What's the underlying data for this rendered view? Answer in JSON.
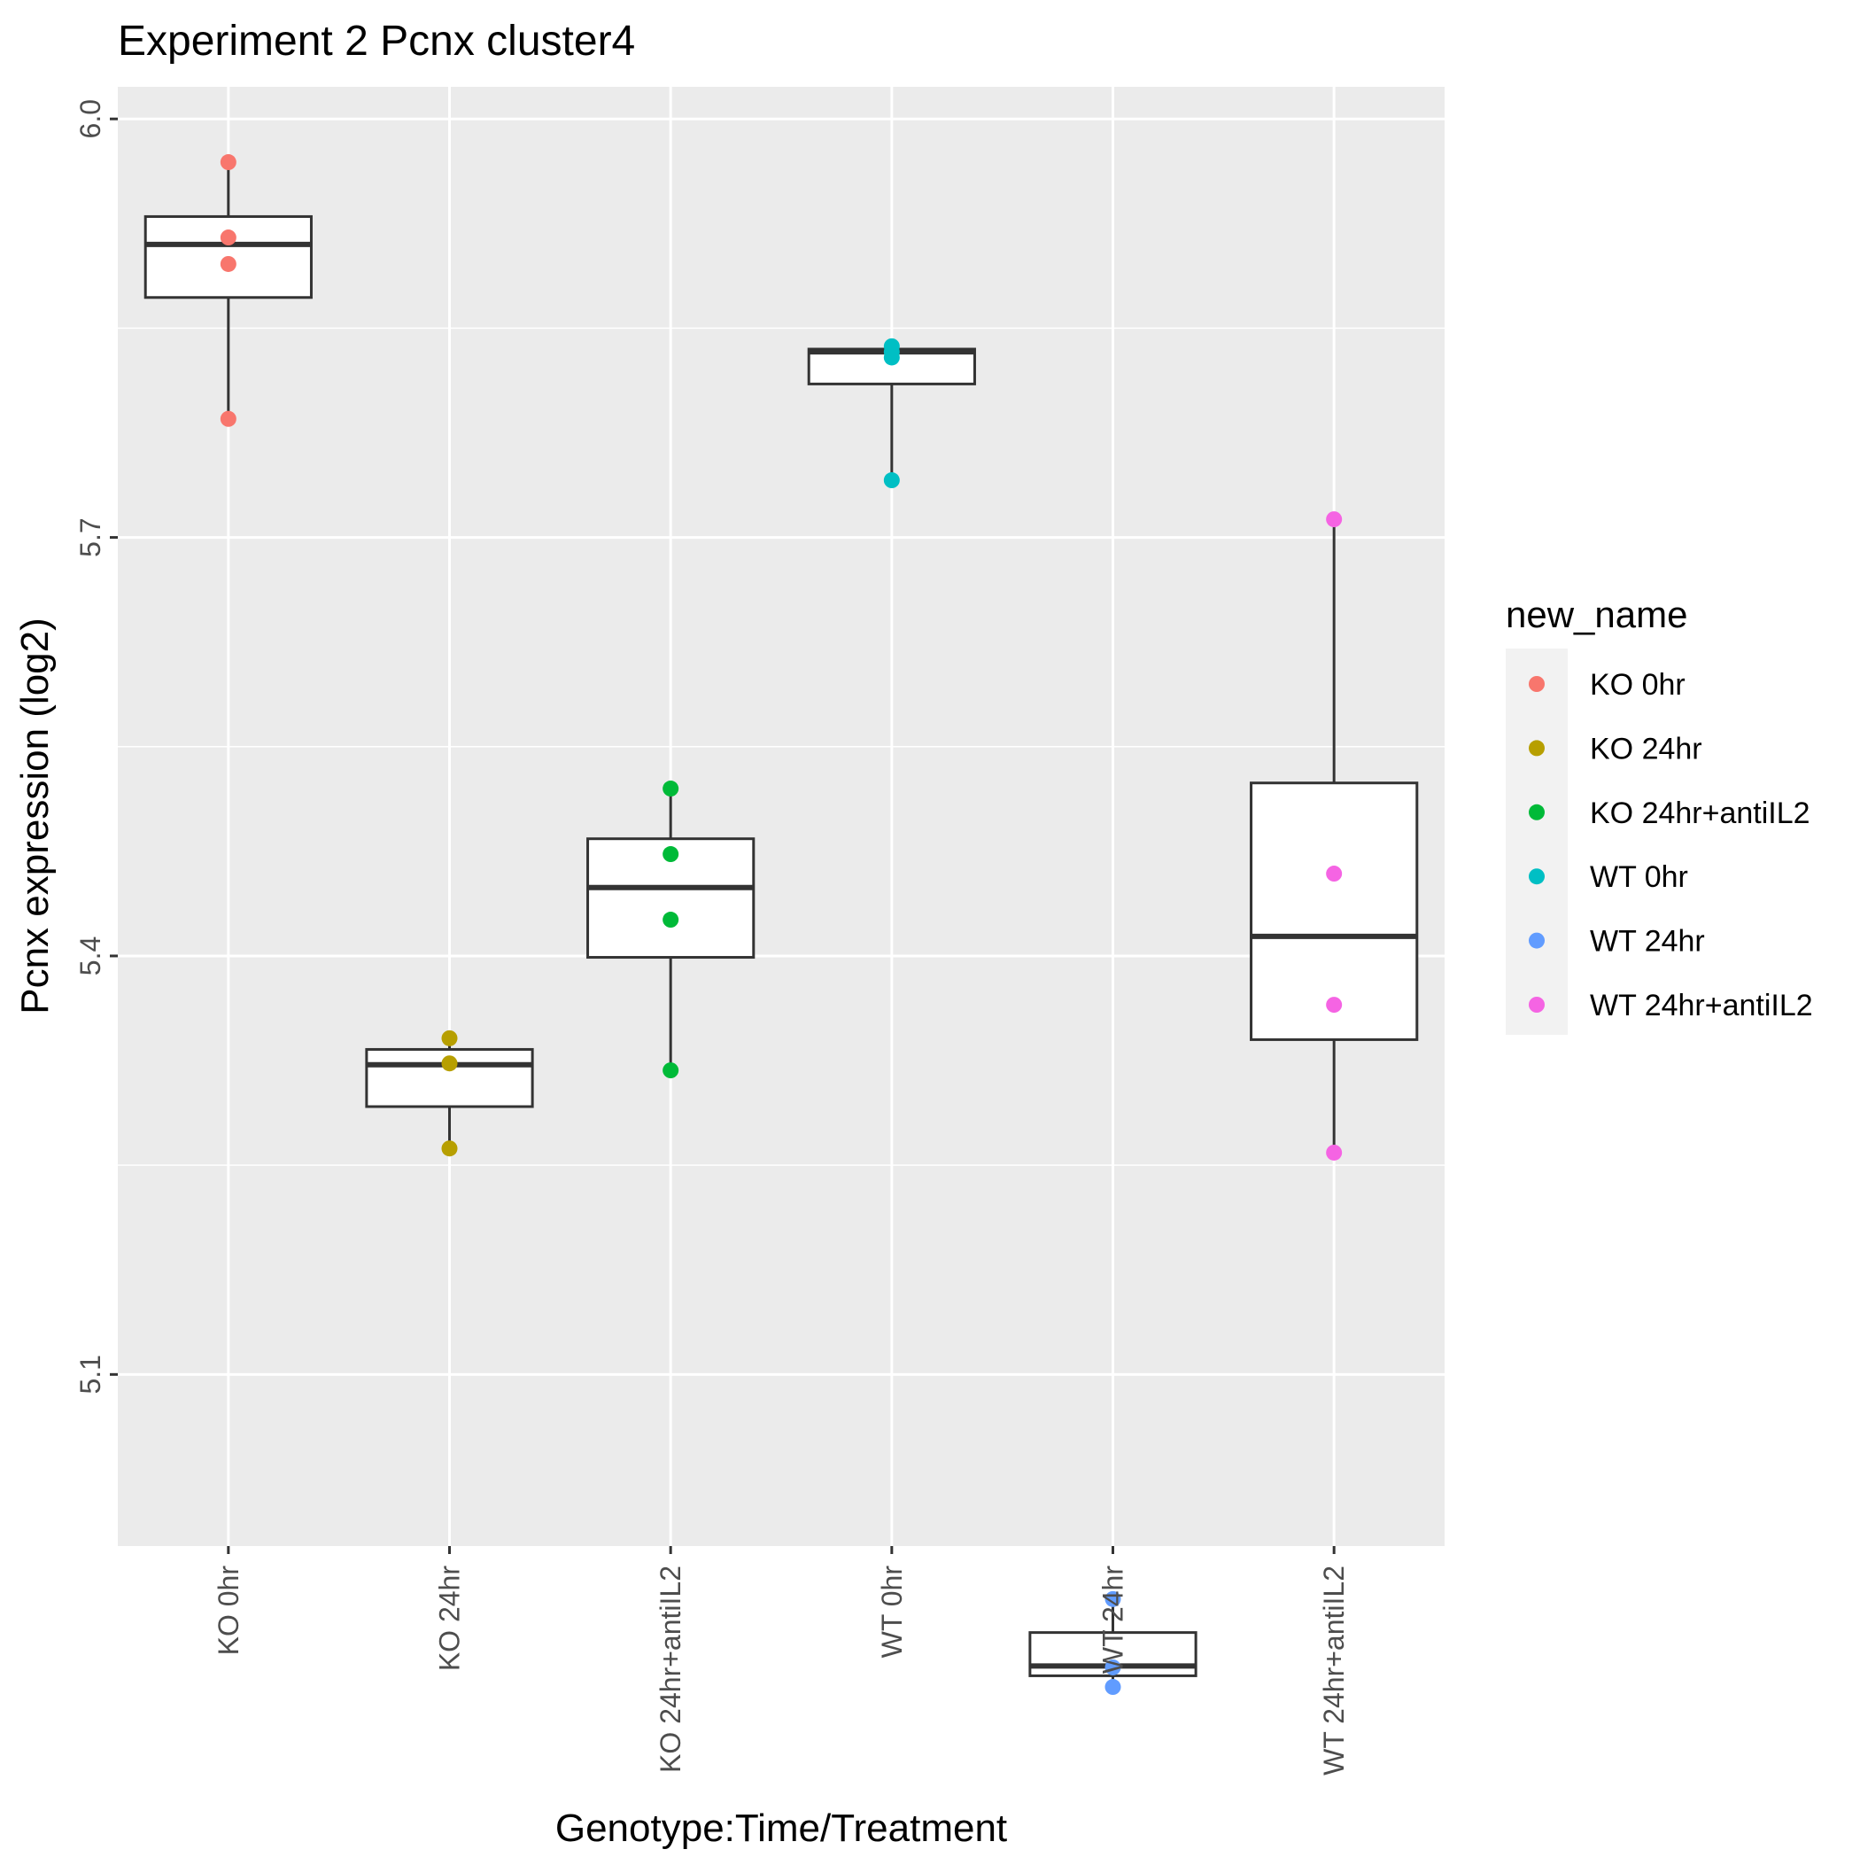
{
  "chart_data": {
    "type": "box",
    "title": "Experiment 2 Pcnx cluster4",
    "xlabel": "Genotype:Time/Treatment",
    "ylabel": "Pcnx expression (log2)",
    "ylim": [
      4.977,
      6.023
    ],
    "yticks": [
      5.1,
      5.4,
      5.7,
      6.0
    ],
    "ytick_labels": [
      "5.1",
      "5.4",
      "5.7",
      "6.0"
    ],
    "grid": true,
    "legend": {
      "title": "new_name",
      "placement": "right",
      "entries": [
        "KO 0hr",
        "KO 24hr",
        "KO 24hr+antiIL2",
        "WT 0hr",
        "WT 24hr",
        "WT 24hr+antiIL2"
      ]
    },
    "categories": [
      "KO 0hr",
      "KO 24hr",
      "KO 24hr+antiIL2",
      "WT 0hr",
      "WT 24hr",
      "WT 24hr+antiIL2"
    ],
    "series": [
      {
        "name": "KO 0hr",
        "color": "#F8766D",
        "points": [
          5.969,
          5.915,
          5.896,
          5.785
        ],
        "box": {
          "lower_whisker": 5.785,
          "q1": 5.872,
          "median": 5.91,
          "q3": 5.93,
          "upper_whisker": 5.969
        }
      },
      {
        "name": "KO 24hr",
        "color": "#B79F00",
        "points": [
          5.341,
          5.323,
          5.262
        ],
        "box": {
          "lower_whisker": 5.262,
          "q1": 5.292,
          "median": 5.322,
          "q3": 5.333,
          "upper_whisker": 5.341
        }
      },
      {
        "name": "KO 24hr+antiIL2",
        "color": "#00BA38",
        "points": [
          5.52,
          5.473,
          5.426,
          5.318
        ],
        "box": {
          "lower_whisker": 5.318,
          "q1": 5.399,
          "median": 5.449,
          "q3": 5.484,
          "upper_whisker": 5.52
        }
      },
      {
        "name": "WT 0hr",
        "color": "#00BFC4",
        "points": [
          5.837,
          5.833,
          5.829,
          5.741
        ],
        "box": {
          "lower_whisker": 5.741,
          "q1": 5.81,
          "median": 5.833,
          "q3": 5.835,
          "upper_whisker": 5.837
        }
      },
      {
        "name": "WT 24hr",
        "color": "#619CFF",
        "points": [
          4.939,
          4.89,
          4.876
        ],
        "box": {
          "lower_whisker": 4.876,
          "q1": 4.884,
          "median": 4.891,
          "q3": 4.915,
          "upper_whisker": 4.939
        }
      },
      {
        "name": "WT 24hr+antiIL2",
        "color": "#F564E3",
        "points": [
          5.713,
          5.459,
          5.365,
          5.259
        ],
        "box": {
          "lower_whisker": 5.259,
          "q1": 5.34,
          "median": 5.414,
          "q3": 5.524,
          "upper_whisker": 5.713
        }
      }
    ]
  }
}
